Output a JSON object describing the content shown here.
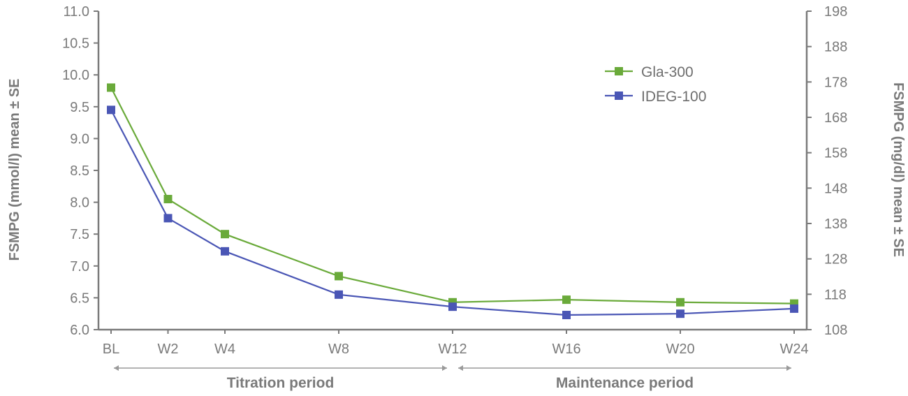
{
  "chart_data": {
    "type": "line",
    "categories": [
      "BL",
      "W2",
      "W4",
      "W8",
      "W12",
      "W16",
      "W20",
      "W24"
    ],
    "x_weeks": [
      0,
      2,
      4,
      8,
      12,
      16,
      20,
      24
    ],
    "series": [
      {
        "name": "Gla-300",
        "color": "#6aaa3a",
        "values": [
          9.8,
          8.05,
          7.5,
          6.84,
          6.43,
          6.47,
          6.43,
          6.41
        ]
      },
      {
        "name": "IDEG-100",
        "color": "#4a56b5",
        "values": [
          9.45,
          7.75,
          7.23,
          6.55,
          6.36,
          6.23,
          6.25,
          6.33
        ]
      }
    ],
    "ylim": [
      6.0,
      11.0
    ],
    "y_ticks": [
      "6.0",
      "6.5",
      "7.0",
      "7.5",
      "8.0",
      "8.5",
      "9.0",
      "9.5",
      "10.0",
      "10.5",
      "11.0"
    ],
    "y2lim": [
      108,
      198
    ],
    "y2_ticks": [
      "108",
      "118",
      "128",
      "138",
      "148",
      "158",
      "168",
      "178",
      "188",
      "198"
    ],
    "ylabel": "FSMPG (mmol/l) mean ± SE",
    "y2label": "FSMPG (mg/dl) mean ± SE",
    "legend_position": "top-right",
    "periods": [
      {
        "label": "Titration period",
        "from": "BL",
        "to": "W12"
      },
      {
        "label": "Maintenance period",
        "from": "W12",
        "to": "W24"
      }
    ]
  }
}
